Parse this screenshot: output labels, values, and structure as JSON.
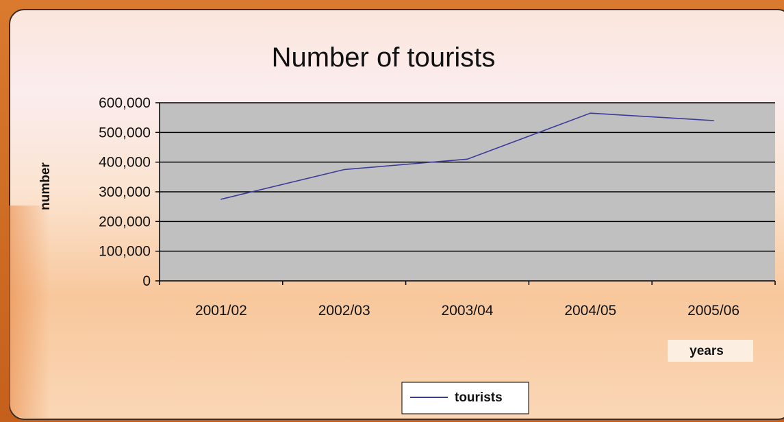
{
  "chart_data": {
    "type": "line",
    "title": "Number of tourists",
    "xlabel": "years",
    "ylabel": "number",
    "categories": [
      "2001/02",
      "2002/03",
      "2003/04",
      "2004/05",
      "2005/06"
    ],
    "series": [
      {
        "name": "tourists",
        "values": [
          275000,
          375000,
          410000,
          565000,
          540000
        ]
      }
    ],
    "ylim": [
      0,
      600000
    ],
    "yticks": [
      "0",
      "100,000",
      "200,000",
      "300,000",
      "400,000",
      "500,000",
      "600,000"
    ],
    "grid": true,
    "legend_position": "bottom",
    "colors": {
      "line": "#3b3b9a",
      "plot_bg": "#c0c0c0",
      "grid": "#000000"
    }
  }
}
